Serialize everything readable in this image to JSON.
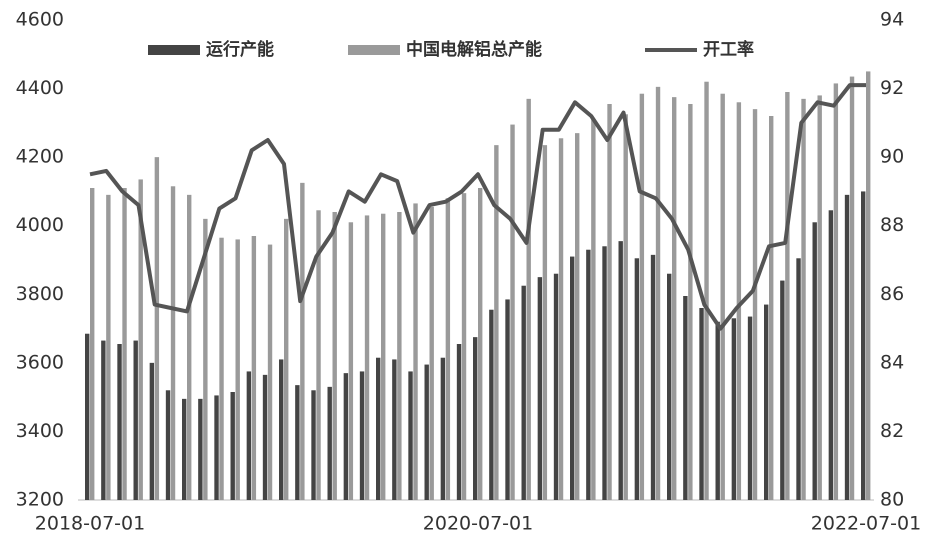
{
  "chart_data": {
    "type": "bar-line",
    "categories": [
      "2018-07-01",
      null,
      null,
      null,
      null,
      null,
      null,
      null,
      null,
      null,
      null,
      null,
      null,
      null,
      null,
      null,
      null,
      null,
      null,
      null,
      null,
      null,
      null,
      null,
      "2020-07-01",
      null,
      null,
      null,
      null,
      null,
      null,
      null,
      null,
      null,
      null,
      null,
      null,
      null,
      null,
      null,
      null,
      null,
      null,
      null,
      null,
      null,
      null,
      null,
      "2022-07-01"
    ],
    "series": [
      {
        "name": "运行产能",
        "type": "bar",
        "color": "#444444",
        "values": [
          3685,
          3665,
          3655,
          3665,
          3600,
          3520,
          3495,
          3495,
          3505,
          3515,
          3575,
          3565,
          3610,
          3535,
          3520,
          3530,
          3570,
          3575,
          3615,
          3610,
          3575,
          3595,
          3615,
          3655,
          3675,
          3755,
          3785,
          3825,
          3850,
          3860,
          3910,
          3930,
          3940,
          3955,
          3905,
          3915,
          3860,
          3795,
          3760,
          3720,
          3730,
          3735,
          3770,
          3840,
          3905,
          4010,
          4045,
          4090,
          4100
        ]
      },
      {
        "name": "中国电解铝总产能",
        "type": "bar",
        "color": "#9a9a9a",
        "values": [
          4110,
          4090,
          4110,
          4135,
          4200,
          4115,
          4090,
          4020,
          3965,
          3960,
          3970,
          3945,
          4020,
          4125,
          4045,
          4040,
          4010,
          4030,
          4035,
          4040,
          4065,
          4055,
          4080,
          4095,
          4110,
          4235,
          4295,
          4370,
          4235,
          4255,
          4270,
          4310,
          4355,
          4325,
          4385,
          4405,
          4375,
          4355,
          4420,
          4385,
          4360,
          4340,
          4320,
          4390,
          4370,
          4380,
          4415,
          4435,
          4450
        ]
      },
      {
        "name": "开工率",
        "type": "line",
        "axis": "y2",
        "color": "#555555",
        "values": [
          89.5,
          89.6,
          89.0,
          88.6,
          85.7,
          85.6,
          85.5,
          87.0,
          88.5,
          88.8,
          90.2,
          90.5,
          89.8,
          85.8,
          87.1,
          87.8,
          89.0,
          88.7,
          89.5,
          89.3,
          87.8,
          88.6,
          88.7,
          89.0,
          89.5,
          88.6,
          88.2,
          87.5,
          90.8,
          90.8,
          91.6,
          91.2,
          90.5,
          91.3,
          89.0,
          88.8,
          88.2,
          87.3,
          85.7,
          85.0,
          85.6,
          86.1,
          87.4,
          87.5,
          91.0,
          91.6,
          91.5,
          92.1,
          92.1
        ]
      }
    ],
    "ylim": [
      3200,
      4600
    ],
    "yticks": [
      3200,
      3400,
      3600,
      3800,
      4000,
      4200,
      4400,
      4600
    ],
    "y2lim": [
      80,
      94
    ],
    "y2ticks": [
      80,
      82,
      84,
      86,
      88,
      90,
      92,
      94
    ],
    "grid": false
  }
}
